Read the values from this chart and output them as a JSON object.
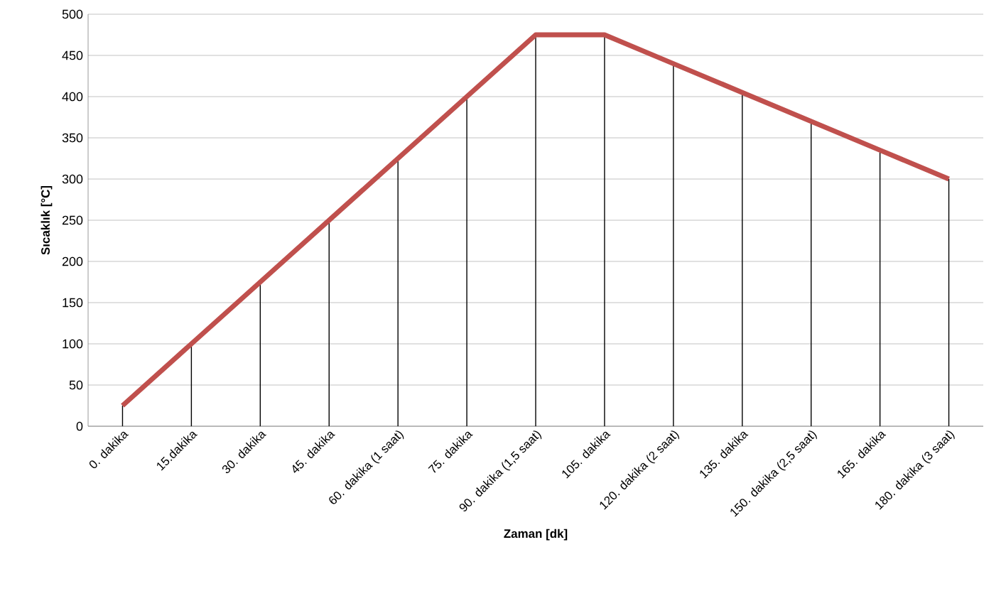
{
  "chart_data": {
    "type": "line",
    "xlabel": "Zaman [dk]",
    "ylabel": "Sıcaklık [°C]",
    "categories": [
      "0. dakika",
      "15.dakika",
      "30. dakika",
      "45. dakika",
      "60. dakika (1 saat)",
      "75. dakika",
      "90. dakika (1,5 saat)",
      "105. dakika",
      "120. dakika (2 saat)",
      "135. dakika",
      "150. dakika (2,5 saat)",
      "165. dakika",
      "180. dakika (3 saat)"
    ],
    "series": [
      {
        "type": "bar",
        "color": "#000000",
        "values": [
          25,
          100,
          175,
          250,
          325,
          400,
          475,
          475,
          440,
          405,
          370,
          335,
          300
        ]
      },
      {
        "color": "#c0504d",
        "values": [
          25,
          100,
          175,
          250,
          325,
          400,
          475,
          475,
          440,
          405,
          370,
          335,
          300
        ]
      }
    ],
    "ylim": [
      0,
      500
    ],
    "yticks": [
      0,
      50,
      100,
      150,
      200,
      250,
      300,
      350,
      400,
      450,
      500
    ],
    "grid": "y",
    "marker": "none",
    "line_style": "solid"
  }
}
